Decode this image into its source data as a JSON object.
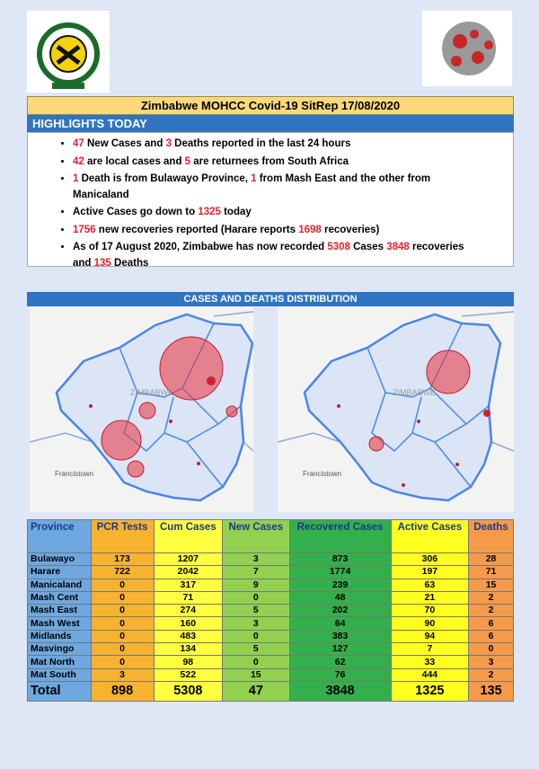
{
  "header": {
    "title": "Zimbabwe MOHCC Covid-19 SitRep 17/08/2020"
  },
  "highlights": {
    "heading": "HIGHLIGHTS TODAY",
    "items": [
      [
        {
          "text": "47",
          "color": "#e8202a"
        },
        " New Cases and ",
        {
          "text": "3",
          "color": "#e8202a"
        },
        " Deaths reported in the last 24 hours"
      ],
      [
        {
          "text": "42",
          "color": "#e8202a"
        },
        " are local cases and ",
        {
          "text": "5",
          "color": "#e8202a"
        },
        " are returnees from South Africa"
      ],
      [
        {
          "text": "1",
          "color": "#e8202a"
        },
        " Death is from Bulawayo Province, ",
        {
          "text": "1",
          "color": "#e8202a"
        },
        " from Mash East and the other from Manicaland"
      ],
      [
        "Active Cases go down to ",
        {
          "text": "1325",
          "color": "#e8202a"
        },
        " today"
      ],
      [
        {
          "text": "1756",
          "color": "#e8202a"
        },
        " new recoveries reported (Harare reports ",
        {
          "text": "1698",
          "color": "#e8202a"
        },
        " recoveries)"
      ],
      [
        "As of 17 August 2020, Zimbabwe has now recorded ",
        {
          "text": "5308",
          "color": "#e8202a"
        },
        " Cases ",
        {
          "text": "3848",
          "color": "#e8202a"
        },
        " recoveries and ",
        {
          "text": "135",
          "color": "#e8202a"
        },
        " Deaths"
      ]
    ]
  },
  "distribution": {
    "heading": "CASES AND DEATHS DISTRIBUTION",
    "maps": [
      {
        "labels": [
          "ZIMBABWE",
          "Francistown"
        ]
      },
      {
        "labels": [
          "ZIMBABWE",
          "Francistown"
        ]
      }
    ]
  },
  "table": {
    "columns": [
      "Province",
      "PCR Tests",
      "Cum Cases",
      "New Cases",
      "Recovered Cases",
      "Active Cases",
      "Deaths"
    ],
    "rows": [
      [
        "Bulawayo",
        173,
        1207,
        3,
        873,
        306,
        28
      ],
      [
        "Harare",
        722,
        2042,
        7,
        1774,
        197,
        71
      ],
      [
        "Manicaland",
        0,
        317,
        9,
        239,
        63,
        15
      ],
      [
        "Mash Cent",
        0,
        71,
        0,
        48,
        21,
        2
      ],
      [
        "Mash East",
        0,
        274,
        5,
        202,
        70,
        2
      ],
      [
        "Mash West",
        0,
        160,
        3,
        64,
        90,
        6
      ],
      [
        "Midlands",
        0,
        483,
        0,
        383,
        94,
        6
      ],
      [
        "Masvingo",
        0,
        134,
        5,
        127,
        7,
        0
      ],
      [
        "Mat North",
        0,
        98,
        0,
        62,
        33,
        3
      ],
      [
        "Mat South",
        3,
        522,
        15,
        76,
        444,
        2
      ]
    ],
    "total": [
      "Total",
      898,
      5308,
      47,
      3848,
      1325,
      135
    ]
  }
}
